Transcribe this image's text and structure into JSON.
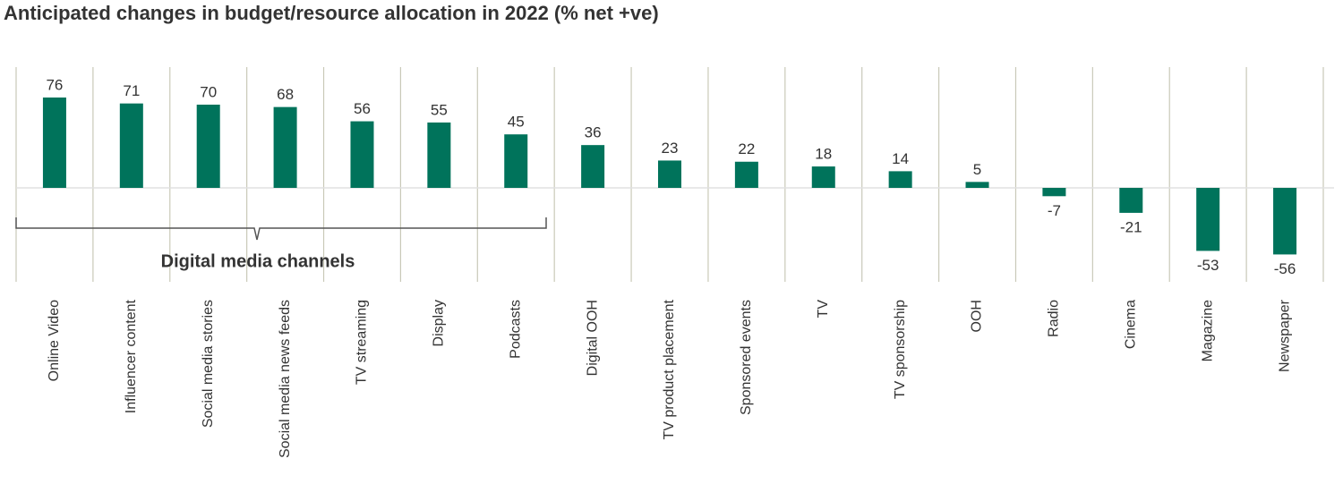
{
  "chart_data": {
    "type": "bar",
    "title": "Anticipated changes in budget/resource allocation in 2022 (% net +ve)",
    "categories": [
      "Online Video",
      "Influencer content",
      "Social media stories",
      "Social media news feeds",
      "TV streaming",
      "Display",
      "Podcasts",
      "Digital OOH",
      "TV product placement",
      "Sponsored events",
      "TV",
      "TV sponsorship",
      "OOH",
      "Radio",
      "Cinema",
      "Magazine",
      "Newspaper"
    ],
    "values": [
      76,
      71,
      70,
      68,
      56,
      55,
      45,
      36,
      23,
      22,
      18,
      14,
      5,
      -7,
      -21,
      -53,
      -56
    ],
    "color": "#00735b",
    "annotation": "Digital media channels"
  }
}
